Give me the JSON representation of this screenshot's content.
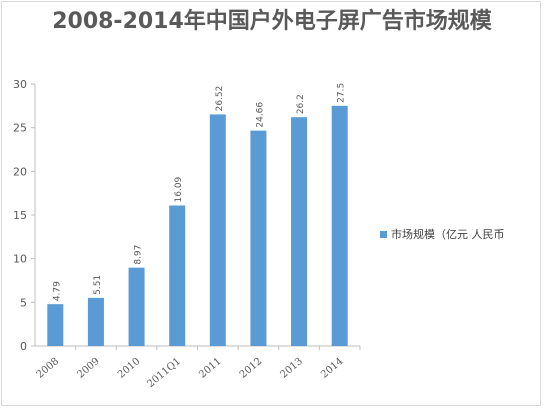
{
  "chart_data": {
    "type": "bar",
    "title": "2008-2014年中国户外电子屏广告市场规模",
    "categories": [
      "2008",
      "2009",
      "2010",
      "2011Q1",
      "2011",
      "2012",
      "2013",
      "2014"
    ],
    "series": [
      {
        "name": "市场规模（亿元 人民币",
        "values": [
          4.79,
          5.51,
          8.97,
          16.09,
          26.52,
          24.66,
          26.2,
          27.5
        ],
        "labels": [
          "4.79",
          "5.51",
          "8.97",
          "16.09",
          "26.52",
          "24.66",
          "26.2",
          "27.5"
        ]
      }
    ],
    "ylim": [
      0,
      30
    ],
    "yticks": [
      0,
      5,
      10,
      15,
      20,
      25,
      30
    ],
    "grid": false,
    "legend": "right",
    "colors": {
      "bar": "#5b9bd5",
      "axis": "#bfbfbf",
      "text": "#595959"
    },
    "xlabel": "",
    "ylabel": ""
  }
}
